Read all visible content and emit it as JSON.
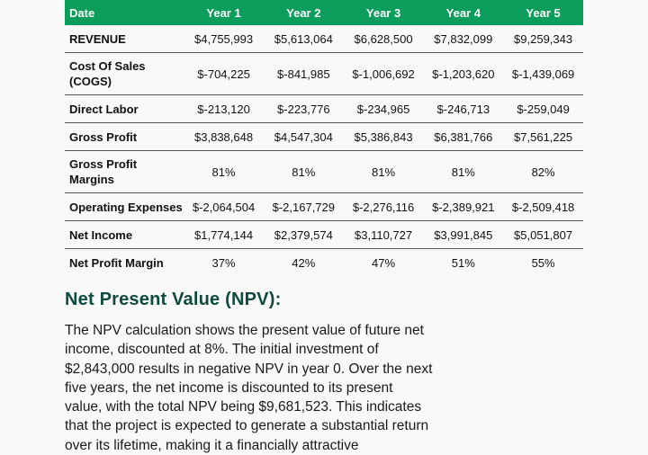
{
  "table": {
    "headers": [
      "Date",
      "Year 1",
      "Year 2",
      "Year 3",
      "Year 4",
      "Year 5"
    ],
    "rows": [
      {
        "label": "REVENUE",
        "values": [
          "$4,755,993",
          "$5,613,064",
          "$6,628,500",
          "$7,832,099",
          "$9,259,343"
        ]
      },
      {
        "label": "Cost Of Sales (COGS)",
        "values": [
          "$-704,225",
          "$-841,985",
          "$-1,006,692",
          "$-1,203,620",
          "$-1,439,069"
        ]
      },
      {
        "label": "Direct Labor",
        "values": [
          "$-213,120",
          "$-223,776",
          "$-234,965",
          "$-246,713",
          "$-259,049"
        ]
      },
      {
        "label": "Gross Profit",
        "values": [
          "$3,838,648",
          "$4,547,304",
          "$5,386,843",
          "$6,381,766",
          "$7,561,225"
        ]
      },
      {
        "label": "Gross Profit Margins",
        "values": [
          "81%",
          "81%",
          "81%",
          "81%",
          "82%"
        ]
      },
      {
        "label": "Operating Expenses",
        "values": [
          "$-2,064,504",
          "$-2,167,729",
          "$-2,276,116",
          "$-2,389,921",
          "$-2,509,418"
        ]
      },
      {
        "label": "Net Income",
        "values": [
          "$1,774,144",
          "$2,379,574",
          "$3,110,727",
          "$3,991,845",
          "$5,051,807"
        ]
      },
      {
        "label": "Net Profit Margin",
        "values": [
          "37%",
          "42%",
          "47%",
          "51%",
          "55%"
        ]
      }
    ]
  },
  "npv": {
    "title": "Net Present Value (NPV):",
    "lines": [
      "The NPV calculation shows the present value of future net",
      "income, discounted at 8%. The initial investment of",
      "$2,843,000 results in negative NPV in year 0. Over the next",
      "five years, the net income is discounted to its present",
      "value, with the total NPV being $9,681,523. This indicates",
      "that the project is expected to generate a substantial return",
      "over its lifetime, making it a financially attractive"
    ]
  },
  "colors": {
    "header_bg": "#0b9d5b",
    "title": "#0d4a3f"
  }
}
